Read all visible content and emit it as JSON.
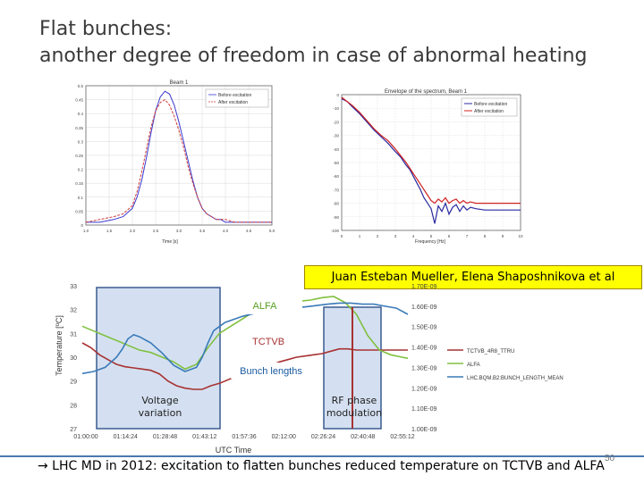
{
  "slide": {
    "title_line1": "Flat bunches:",
    "title_line2": "another degree of freedom in case of abnormal heating",
    "credit": "Juan Esteban Mueller, Elena Shaposhnikova et al",
    "footer": "→ LHC MD in 2012: excitation to flatten bunches reduced temperature on TCTVB and ALFA",
    "page_number": "50"
  },
  "chart_data": [
    {
      "type": "line",
      "title": "Beam 1",
      "xlabel": "Time [s]",
      "ylabel": "",
      "x_ticks": [
        "1.0",
        "1.5",
        "2.0",
        "2.5",
        "3.0",
        "3.5",
        "4.0",
        "4.5",
        "5.0"
      ],
      "y_ticks": [
        "0.5",
        "0.45",
        "0.4",
        "0.35",
        "0.3",
        "0.25",
        "0.2",
        "0.15",
        "0.1",
        "0.05",
        "0"
      ],
      "legend": [
        "Before excitation",
        "After excitation"
      ],
      "legend_position": "top-right",
      "grid": true,
      "xlim": [
        1.0,
        5.0
      ],
      "ylim": [
        0,
        0.5
      ],
      "series": [
        {
          "name": "Before excitation",
          "color": "#3a3ad0",
          "x": [
            1.0,
            1.3,
            1.6,
            1.8,
            2.0,
            2.1,
            2.2,
            2.3,
            2.4,
            2.5,
            2.6,
            2.7,
            2.8,
            2.9,
            3.0,
            3.1,
            3.2,
            3.3,
            3.4,
            3.5,
            3.6,
            3.7,
            3.8,
            3.9,
            4.0,
            4.2,
            4.5,
            5.0
          ],
          "y": [
            0.01,
            0.01,
            0.02,
            0.03,
            0.06,
            0.1,
            0.16,
            0.24,
            0.33,
            0.41,
            0.46,
            0.48,
            0.47,
            0.43,
            0.37,
            0.3,
            0.23,
            0.16,
            0.1,
            0.06,
            0.04,
            0.03,
            0.02,
            0.02,
            0.01,
            0.01,
            0.01,
            0.01
          ]
        },
        {
          "name": "After excitation",
          "color": "#d03a3a",
          "x": [
            1.0,
            1.3,
            1.6,
            1.8,
            2.0,
            2.1,
            2.2,
            2.3,
            2.4,
            2.5,
            2.6,
            2.7,
            2.8,
            2.9,
            3.0,
            3.1,
            3.2,
            3.3,
            3.4,
            3.5,
            3.6,
            3.7,
            3.8,
            3.9,
            4.0,
            4.2,
            4.5,
            5.0
          ],
          "y": [
            0.01,
            0.02,
            0.03,
            0.04,
            0.07,
            0.12,
            0.19,
            0.27,
            0.35,
            0.41,
            0.44,
            0.45,
            0.43,
            0.39,
            0.34,
            0.28,
            0.21,
            0.15,
            0.1,
            0.06,
            0.04,
            0.03,
            0.02,
            0.02,
            0.02,
            0.01,
            0.01,
            0.01
          ]
        }
      ]
    },
    {
      "type": "line",
      "title": "Envelope of the spectrum, Beam 1",
      "xlabel": "Frequency [Hz]",
      "ylabel": "",
      "x_ticks": [
        "0",
        "1",
        "2",
        "3",
        "4",
        "5",
        "6",
        "7",
        "8",
        "9",
        "10"
      ],
      "y_ticks": [
        "0",
        "-10",
        "-20",
        "-30",
        "-40",
        "-50",
        "-60",
        "-70",
        "-80",
        "-90",
        "-100"
      ],
      "legend": [
        "Before excitation",
        "After excitation"
      ],
      "legend_position": "top-right",
      "grid": true,
      "xlim": [
        0,
        10
      ],
      "ylim": [
        -100,
        0
      ],
      "series": [
        {
          "name": "Before excitation",
          "color": "#2a2aa0",
          "x": [
            0,
            0.3,
            0.6,
            1.0,
            1.4,
            1.8,
            2.2,
            2.6,
            3.0,
            3.3,
            3.6,
            3.8,
            4.0,
            4.2,
            4.4,
            4.6,
            4.8,
            5.0,
            5.2,
            5.4,
            5.6,
            5.8,
            6.0,
            6.2,
            6.4,
            6.6,
            6.8,
            7.0,
            7.2,
            7.5,
            8.0,
            9.0,
            10.0
          ],
          "y": [
            -3,
            -5,
            -9,
            -14,
            -20,
            -26,
            -31,
            -36,
            -42,
            -46,
            -52,
            -55,
            -60,
            -65,
            -70,
            -76,
            -80,
            -84,
            -95,
            -82,
            -86,
            -80,
            -88,
            -83,
            -81,
            -86,
            -82,
            -85,
            -83,
            -84,
            -85,
            -85,
            -85
          ]
        },
        {
          "name": "After excitation",
          "color": "#d02020",
          "x": [
            0,
            0.3,
            0.6,
            1.0,
            1.4,
            1.8,
            2.2,
            2.6,
            3.0,
            3.3,
            3.6,
            3.8,
            4.0,
            4.2,
            4.4,
            4.6,
            4.8,
            5.0,
            5.2,
            5.4,
            5.6,
            5.8,
            6.0,
            6.2,
            6.4,
            6.6,
            6.8,
            7.0,
            7.2,
            7.5,
            8.0,
            9.0,
            10.0
          ],
          "y": [
            -2,
            -5,
            -8,
            -13,
            -19,
            -25,
            -30,
            -34,
            -40,
            -45,
            -50,
            -54,
            -58,
            -62,
            -66,
            -70,
            -74,
            -78,
            -80,
            -77,
            -79,
            -76,
            -80,
            -78,
            -77,
            -80,
            -78,
            -80,
            -79,
            -80,
            -80,
            -80,
            -80
          ]
        }
      ]
    },
    {
      "type": "line",
      "xlabel": "UTC Time",
      "ylabel": "Temperature [ºC]",
      "x_ticks": [
        "01:00:00",
        "01:14:24",
        "01:28:48",
        "01:43:12",
        "01:57:36",
        "02:12:00",
        "02:26:24",
        "02:40:48",
        "02:55:12"
      ],
      "y_ticks": [
        "33",
        "32",
        "31",
        "30",
        "29",
        "28",
        "27"
      ],
      "y2_ticks": [
        "1.70E-09",
        "1.60E-09",
        "1.50E-09",
        "1.40E-09",
        "1.30E-09",
        "1.20E-09",
        "1.10E-09",
        "1.00E-09"
      ],
      "ylim": [
        27,
        33
      ],
      "y2lim": [
        1e-09,
        1.7e-09
      ],
      "legend": [
        "TCTVB_4R8_TTRU",
        "ALFA",
        "LHC.BQM.B2:BUNCH_LENGTH_MEAN"
      ],
      "legend_position": "right",
      "annotations": [
        "ALFA",
        "TCTVB",
        "Bunch lengths",
        "Voltage variation",
        "RF phase modulation"
      ],
      "series": [
        {
          "name": "TCTVB_4R8_TTRU",
          "color": "#a83232",
          "axis": "left",
          "x": [
            0,
            3,
            6,
            9,
            12,
            15,
            18,
            21,
            24,
            27,
            30,
            33,
            36,
            39,
            42,
            45,
            48,
            51,
            54,
            57,
            60,
            63,
            66,
            69,
            72,
            75,
            78,
            81,
            84,
            87,
            90,
            93,
            96,
            99,
            102,
            105,
            108,
            111,
            114
          ],
          "y": [
            30.6,
            30.4,
            30.1,
            29.9,
            29.7,
            29.6,
            29.55,
            29.5,
            29.45,
            29.3,
            29.0,
            28.8,
            28.7,
            28.65,
            28.65,
            28.8,
            28.9,
            29.05,
            29.2,
            29.3,
            29.45,
            29.55,
            29.65,
            29.8,
            29.9,
            30.0,
            30.05,
            30.1,
            30.15,
            30.25,
            30.35,
            30.35,
            30.3,
            30.3,
            30.3,
            30.3,
            30.3,
            30.3,
            30.3
          ]
        },
        {
          "name": "ALFA",
          "color": "#80c040",
          "axis": "left",
          "x": [
            0,
            4,
            8,
            12,
            16,
            20,
            24,
            28,
            32,
            36,
            40,
            44,
            48,
            52,
            56,
            60,
            64,
            68,
            72,
            76,
            80,
            84,
            88,
            92,
            96,
            100,
            104,
            108,
            112,
            114
          ],
          "y": [
            31.3,
            31.1,
            30.9,
            30.7,
            30.5,
            30.3,
            30.2,
            30.0,
            29.8,
            29.5,
            29.7,
            30.4,
            31.0,
            31.3,
            31.6,
            31.9,
            32.1,
            32.2,
            32.3,
            32.35,
            32.4,
            32.5,
            32.55,
            32.3,
            31.8,
            30.9,
            30.3,
            30.1,
            30.0,
            29.95
          ]
        },
        {
          "name": "LHC.BQM.B2:BUNCH_LENGTH_MEAN",
          "color": "#3a7ab8",
          "axis": "right",
          "x": [
            0,
            4,
            8,
            12,
            14,
            16,
            18,
            20,
            24,
            28,
            32,
            36,
            40,
            42,
            44,
            46,
            50,
            56,
            62,
            68,
            74,
            80,
            86,
            90,
            94,
            98,
            102,
            106,
            110,
            114
          ],
          "y": [
            1.27e-09,
            1.28e-09,
            1.3e-09,
            1.35e-09,
            1.39e-09,
            1.44e-09,
            1.46e-09,
            1.45e-09,
            1.42e-09,
            1.37e-09,
            1.31e-09,
            1.28e-09,
            1.3e-09,
            1.35e-09,
            1.42e-09,
            1.48e-09,
            1.52e-09,
            1.55e-09,
            1.57e-09,
            1.58e-09,
            1.59e-09,
            1.6e-09,
            1.61e-09,
            1.615e-09,
            1.615e-09,
            1.61e-09,
            1.61e-09,
            1.6e-09,
            1.59e-09,
            1.56e-09
          ]
        }
      ]
    }
  ]
}
